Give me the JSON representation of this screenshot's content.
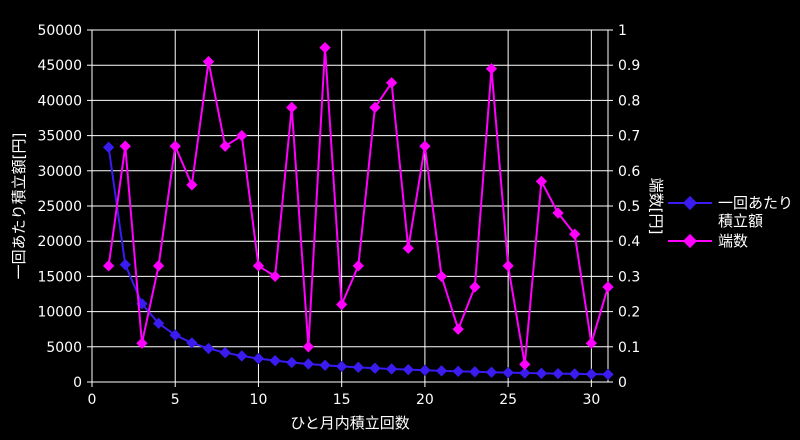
{
  "chart_data": {
    "type": "line",
    "xlabel": "ひと月内積立回数",
    "ylabel_left": "一回あたり積立額[円]",
    "ylabel_right": "端数[円]",
    "xlim": [
      0,
      31
    ],
    "x_ticks": [
      0,
      5,
      10,
      15,
      20,
      25,
      30
    ],
    "ylim_left": [
      0,
      50000
    ],
    "y_ticks_left": [
      0,
      5000,
      10000,
      15000,
      20000,
      25000,
      30000,
      35000,
      40000,
      45000,
      50000
    ],
    "ylim_right": [
      0,
      1
    ],
    "y_ticks_right": [
      "0",
      "0.1",
      "0.2",
      "0.3",
      "0.4",
      "0.5",
      "0.6",
      "0.7",
      "0.8",
      "0.9",
      "1"
    ],
    "grid": true,
    "legend_position": "right",
    "x": [
      1,
      2,
      3,
      4,
      5,
      6,
      7,
      8,
      9,
      10,
      11,
      12,
      13,
      14,
      15,
      16,
      17,
      18,
      19,
      20,
      21,
      22,
      23,
      24,
      25,
      26,
      27,
      28,
      29,
      30,
      31
    ],
    "series": [
      {
        "name_lines": [
          "一回あたり",
          "積立額"
        ],
        "axis": "left",
        "color": "#3a1cf0",
        "values": [
          33333,
          16666,
          11111,
          8333,
          6666,
          5555,
          4761,
          4166,
          3703,
          3333,
          3030,
          2777,
          2564,
          2380,
          2222,
          2083,
          1960,
          1851,
          1754,
          1666,
          1587,
          1515,
          1449,
          1388,
          1333,
          1282,
          1234,
          1190,
          1149,
          1111,
          1075
        ]
      },
      {
        "name_lines": [
          "端数"
        ],
        "axis": "right",
        "color": "#ff00ff",
        "values": [
          0.33,
          0.67,
          0.11,
          0.33,
          0.67,
          0.56,
          0.91,
          0.67,
          0.7,
          0.33,
          0.3,
          0.78,
          0.1,
          0.95,
          0.22,
          0.33,
          0.78,
          0.85,
          0.38,
          0.67,
          0.3,
          0.15,
          0.27,
          0.89,
          0.33,
          0.05,
          0.57,
          0.48,
          0.42,
          0.11,
          0.27
        ]
      }
    ]
  }
}
